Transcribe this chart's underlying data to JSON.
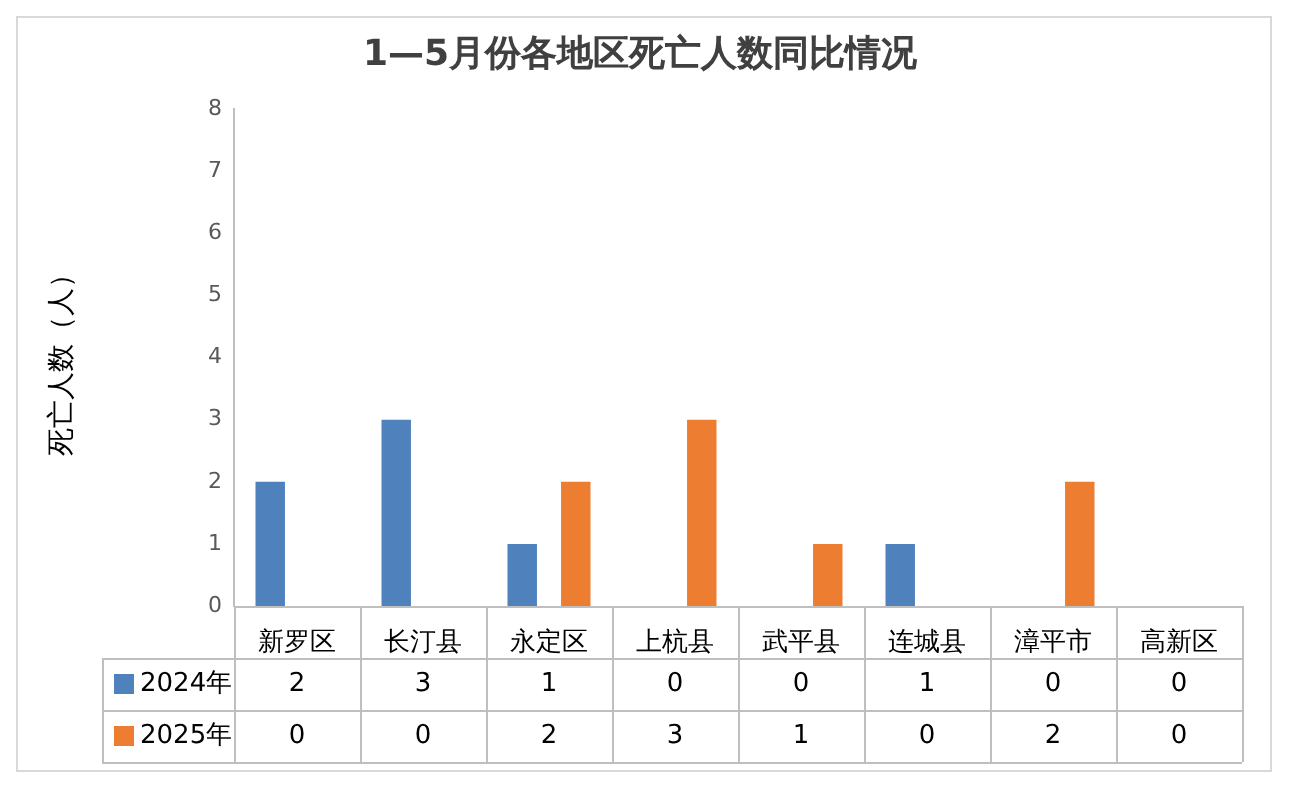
{
  "chart_data": {
    "type": "bar",
    "title": "1—5月份各地区死亡人数同比情况",
    "ylabel": "死亡人数（人）",
    "categories": [
      "新罗区",
      "长汀县",
      "永定区",
      "上杭县",
      "武平县",
      "连城县",
      "漳平市",
      "高新区"
    ],
    "series": [
      {
        "name": "2024年",
        "color": "#4f81bd",
        "values": [
          2,
          3,
          1,
          0,
          0,
          1,
          0,
          0
        ]
      },
      {
        "name": "2025年",
        "color": "#ed7d31",
        "values": [
          0,
          0,
          2,
          3,
          1,
          0,
          2,
          0
        ]
      }
    ],
    "ylim": [
      0,
      8
    ],
    "yticks": [
      0,
      1,
      2,
      3,
      4,
      5,
      6,
      7,
      8
    ],
    "grid": false,
    "legend": "bottom",
    "data_labels": true
  }
}
